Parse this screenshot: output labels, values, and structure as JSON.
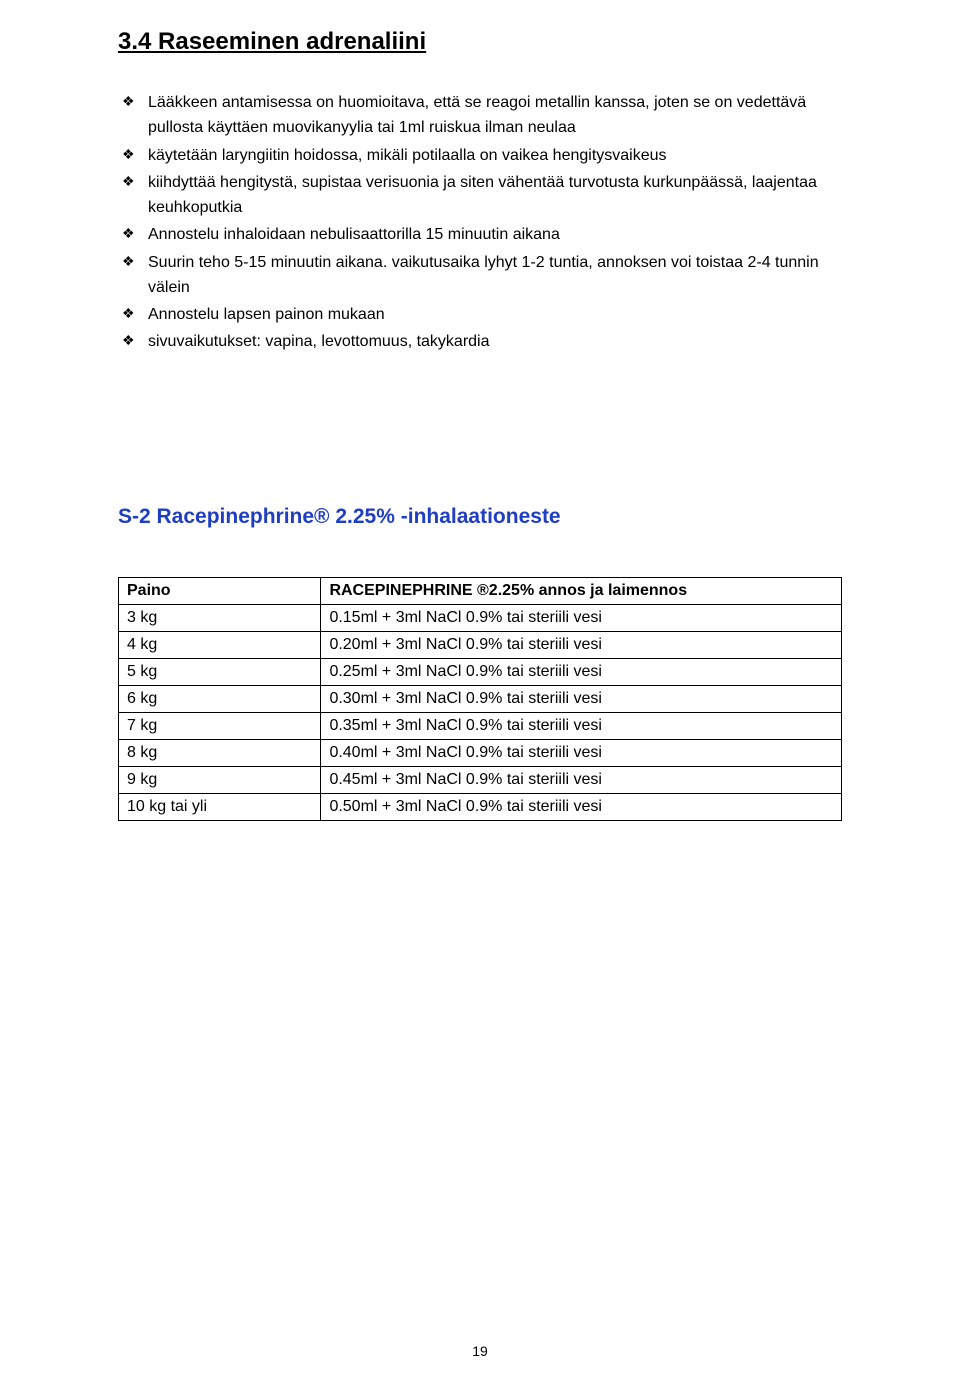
{
  "section": {
    "heading": "3.4 Raseeminen adrenaliini",
    "bullets": [
      "Lääkkeen antamisessa on huomioitava, että se reagoi metallin kanssa, joten se on vedettävä pullosta käyttäen muovikanyylia tai 1ml ruiskua ilman neulaa",
      "käytetään laryngiitin hoidossa, mikäli potilaalla on vaikea hengitysvaikeus",
      "kiihdyttää hengitystä, supistaa verisuonia ja siten vähentää turvotusta kurkunpäässä, laajentaa keuhkoputkia",
      "Annostelu inhaloidaan nebulisaattorilla 15 minuutin aikana",
      "Suurin teho 5-15 minuutin aikana. vaikutusaika lyhyt 1-2 tuntia, annoksen voi toistaa 2-4 tunnin välein",
      "Annostelu lapsen painon mukaan",
      "sivuvaikutukset: vapina, levottomuus, takykardia"
    ]
  },
  "product_heading": "S-2 Racepinephrine® 2.25% -inhalaationeste",
  "table": {
    "columns": [
      "Paino",
      "RACEPINEPHRINE ®2.25% annos ja laimennos"
    ],
    "rows": [
      [
        "3 kg",
        "0.15ml + 3ml NaCl 0.9% tai steriili vesi"
      ],
      [
        "4 kg",
        "0.20ml + 3ml NaCl 0.9% tai steriili vesi"
      ],
      [
        "5 kg",
        "0.25ml + 3ml NaCl 0.9% tai steriili vesi"
      ],
      [
        "6 kg",
        "0.30ml + 3ml NaCl 0.9% tai steriili vesi"
      ],
      [
        "7 kg",
        "0.35ml + 3ml NaCl 0.9% tai steriili vesi"
      ],
      [
        "8 kg",
        "0.40ml + 3ml NaCl 0.9% tai steriili vesi"
      ],
      [
        "9 kg",
        "0.45ml + 3ml NaCl 0.9% tai steriili vesi"
      ],
      [
        "10 kg tai yli",
        "0.50ml + 3ml NaCl 0.9% tai steriili vesi"
      ]
    ]
  },
  "page_number": "19",
  "colors": {
    "heading_blue": "#1f3ec3",
    "text": "#000000",
    "background": "#ffffff",
    "border": "#000000"
  }
}
